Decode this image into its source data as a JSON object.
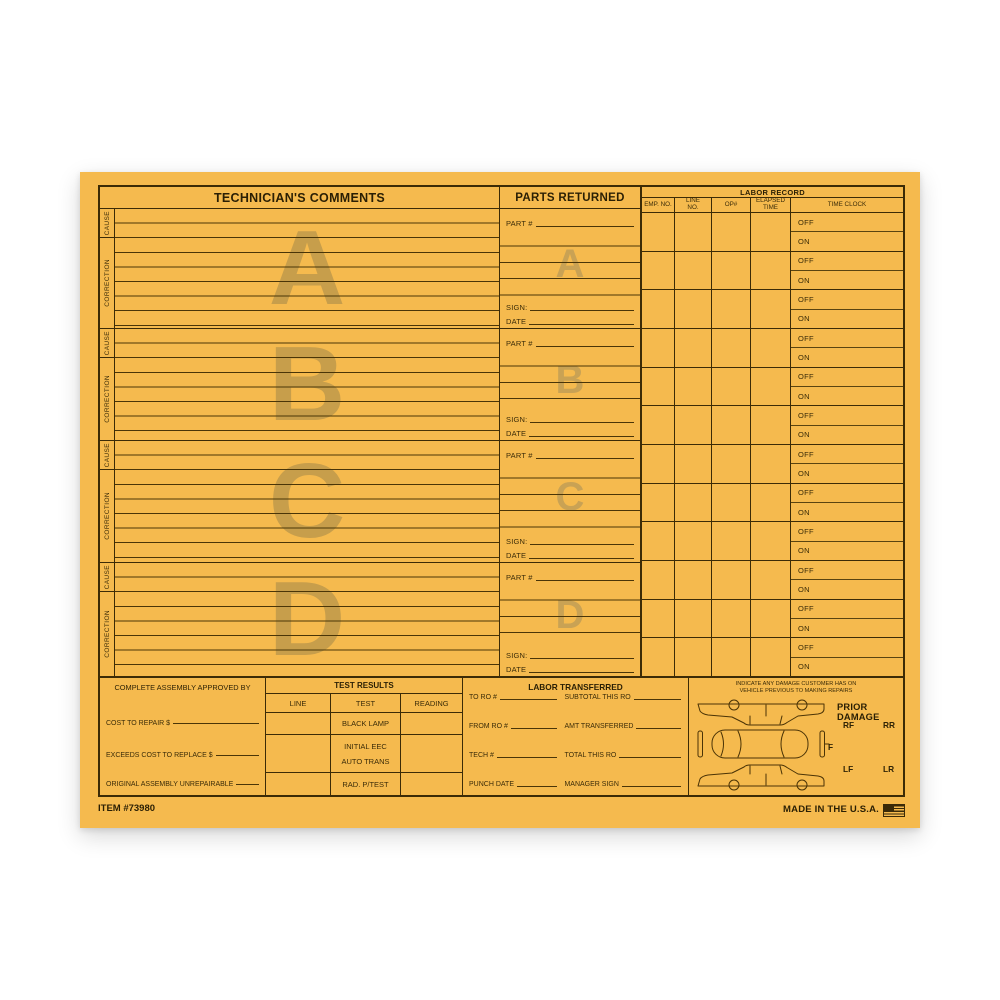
{
  "form": {
    "colors": {
      "paper": "#f5ba4e",
      "ink": "#3c2b06",
      "watermark": "#c79e4b"
    },
    "comments": {
      "title": "TECHNICIAN'S COMMENTS",
      "cause_label": "CAUSE",
      "correction_label": "CORRECTION",
      "sections": [
        "A",
        "B",
        "C",
        "D"
      ]
    },
    "parts": {
      "title": "PARTS RETURNED",
      "part_label": "PART #",
      "sign_label": "SIGN:",
      "date_label": "DATE",
      "sections": [
        "A",
        "B",
        "C",
        "D"
      ]
    },
    "labor_record": {
      "title": "LABOR RECORD",
      "columns": [
        "EMP. NO.",
        "LINE\nNO.",
        "OP#",
        "ELAPSED\nTIME",
        "TIME CLOCK"
      ],
      "off_label": "OFF",
      "on_label": "ON",
      "row_count": 12
    },
    "approval": {
      "title": "COMPLETE ASSEMBLY APPROVED BY",
      "fields": [
        "COST TO REPAIR $",
        "EXCEEDS COST TO REPLACE $",
        "ORIGINAL ASSEMBLY UNREPAIRABLE"
      ]
    },
    "test_results": {
      "title": "TEST RESULTS",
      "columns": [
        "LINE",
        "TEST",
        "READING"
      ],
      "rows": [
        [
          "BLACK LAMP"
        ],
        [
          "INITIAL EEC",
          "AUTO TRANS"
        ],
        [
          "RAD. P/TEST"
        ]
      ]
    },
    "labor_transferred": {
      "title": "LABOR TRANSFERRED",
      "rows": [
        [
          "TO RO #",
          "SUBTOTAL THIS RO"
        ],
        [
          "FROM RO #",
          "AMT TRANSFERRED"
        ],
        [
          "TECH #",
          "TOTAL THIS RO"
        ],
        [
          "PUNCH DATE",
          "MANAGER SIGN"
        ]
      ]
    },
    "damage": {
      "note_line1": "INDICATE ANY DAMAGE CUSTOMER HAS ON",
      "note_line2": "VEHICLE PREVIOUS TO MAKING REPAIRS",
      "title": "PRIOR DAMAGE",
      "labels": {
        "rf": "RF",
        "rr": "RR",
        "f": "F",
        "lf": "LF",
        "lr": "LR"
      }
    },
    "footer": {
      "item": "ITEM #73980",
      "made_in": "MADE IN THE U.S.A."
    }
  }
}
